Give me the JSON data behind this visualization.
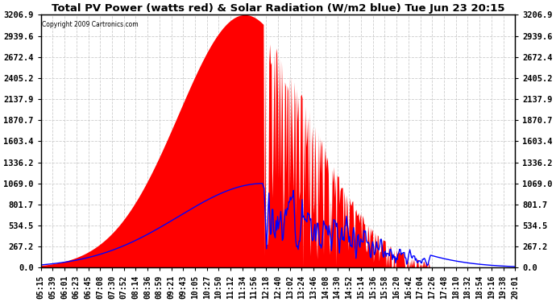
{
  "title": "Total PV Power (watts red) & Solar Radiation (W/m2 blue) Tue Jun 23 20:15",
  "copyright": "Copyright 2009 Cartronics.com",
  "y_ticks": [
    0.0,
    267.2,
    534.5,
    801.7,
    1069.0,
    1336.2,
    1603.4,
    1870.7,
    2137.9,
    2405.2,
    2672.4,
    2939.6,
    3206.9
  ],
  "y_max": 3206.9,
  "x_labels": [
    "05:15",
    "05:39",
    "06:01",
    "06:23",
    "06:45",
    "07:08",
    "07:30",
    "07:52",
    "08:14",
    "08:36",
    "08:59",
    "09:21",
    "09:43",
    "10:05",
    "10:27",
    "10:50",
    "11:12",
    "11:34",
    "11:56",
    "12:18",
    "12:40",
    "13:02",
    "13:24",
    "13:46",
    "14:08",
    "14:30",
    "14:52",
    "15:14",
    "15:36",
    "15:58",
    "16:20",
    "16:42",
    "17:04",
    "17:26",
    "17:48",
    "18:10",
    "18:32",
    "18:54",
    "19:16",
    "19:38",
    "20:01"
  ],
  "pv_color": "red",
  "solar_color": "blue",
  "bg_color": "white",
  "grid_color": "#cccccc",
  "title_fontsize": 9.5,
  "tick_fontsize": 7.5
}
